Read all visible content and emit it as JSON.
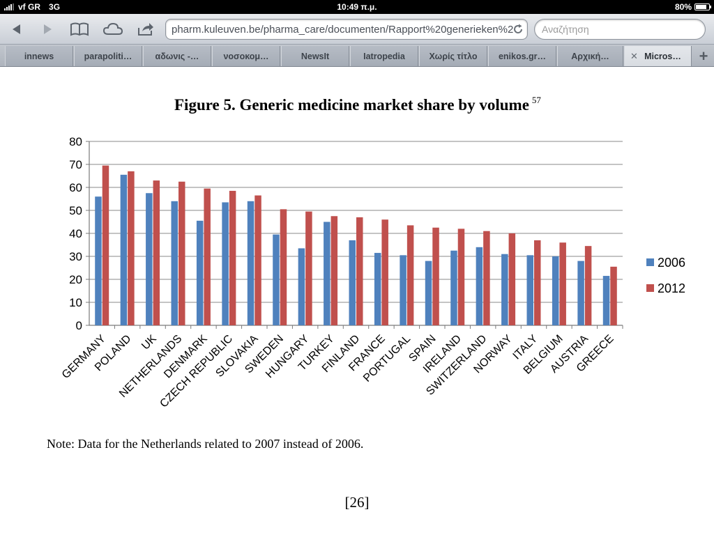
{
  "status_bar": {
    "carrier": "vf GR",
    "network": "3G",
    "time": "10:49 π.μ.",
    "battery": "80%"
  },
  "toolbar": {
    "url": "pharm.kuleuven.be/pharma_care/documenten/Rapport%20generieken%2",
    "search_placeholder": "Αναζήτηση",
    "icons": [
      "back-arrow-icon",
      "forward-arrow-icon",
      "bookmarks-book-icon",
      "icloud-icon",
      "share-icon",
      "reload-icon"
    ]
  },
  "tabs": [
    {
      "label": "innews"
    },
    {
      "label": "parapoliti…"
    },
    {
      "label": "αδωνις -…"
    },
    {
      "label": "νοσοκομ…"
    },
    {
      "label": "NewsIt"
    },
    {
      "label": "Iatropedia"
    },
    {
      "label": "Χωρίς τίτλο"
    },
    {
      "label": "enikos.gr…"
    },
    {
      "label": "Αρχική…"
    },
    {
      "label": "Micros…",
      "active": true
    }
  ],
  "document": {
    "figure_title": "Figure 5. Generic medicine market share by volume",
    "footnote_ref": "57",
    "note": "Note: Data for the Netherlands related to 2007 instead of 2006.",
    "page_number": "[26]"
  },
  "chart_data": {
    "type": "bar",
    "title": "Figure 5. Generic medicine market share by volume",
    "categories": [
      "GERMANY",
      "POLAND",
      "UK",
      "NETHERLANDS",
      "DENMARK",
      "CZECH REPUBLIC",
      "SLOVAKIA",
      "SWEDEN",
      "HUNGARY",
      "TURKEY",
      "FINLAND",
      "FRANCE",
      "PORTUGAL",
      "SPAIN",
      "IRELAND",
      "SWITZERLAND",
      "NORWAY",
      "ITALY",
      "BELGIUM",
      "AUSTRIA",
      "GREECE"
    ],
    "series": [
      {
        "name": "2006",
        "color": "#4f81bd",
        "values": [
          56,
          65.5,
          57.5,
          54,
          45.5,
          53.5,
          54,
          39.5,
          33.5,
          45,
          37,
          31.5,
          30.5,
          28,
          32.5,
          34,
          31,
          30.5,
          30,
          28,
          21.5
        ]
      },
      {
        "name": "2012",
        "color": "#c0504d",
        "values": [
          69.5,
          67,
          63,
          62.5,
          59.5,
          58.5,
          56.5,
          50.5,
          49.5,
          47.5,
          47,
          46,
          43.5,
          42.5,
          42,
          41,
          40,
          37,
          36,
          34.5,
          25.5
        ]
      }
    ],
    "ylim": [
      0,
      80
    ],
    "yticks": [
      0,
      10,
      20,
      30,
      40,
      50,
      60,
      70,
      80
    ],
    "grid": true,
    "legend_position": "right"
  }
}
